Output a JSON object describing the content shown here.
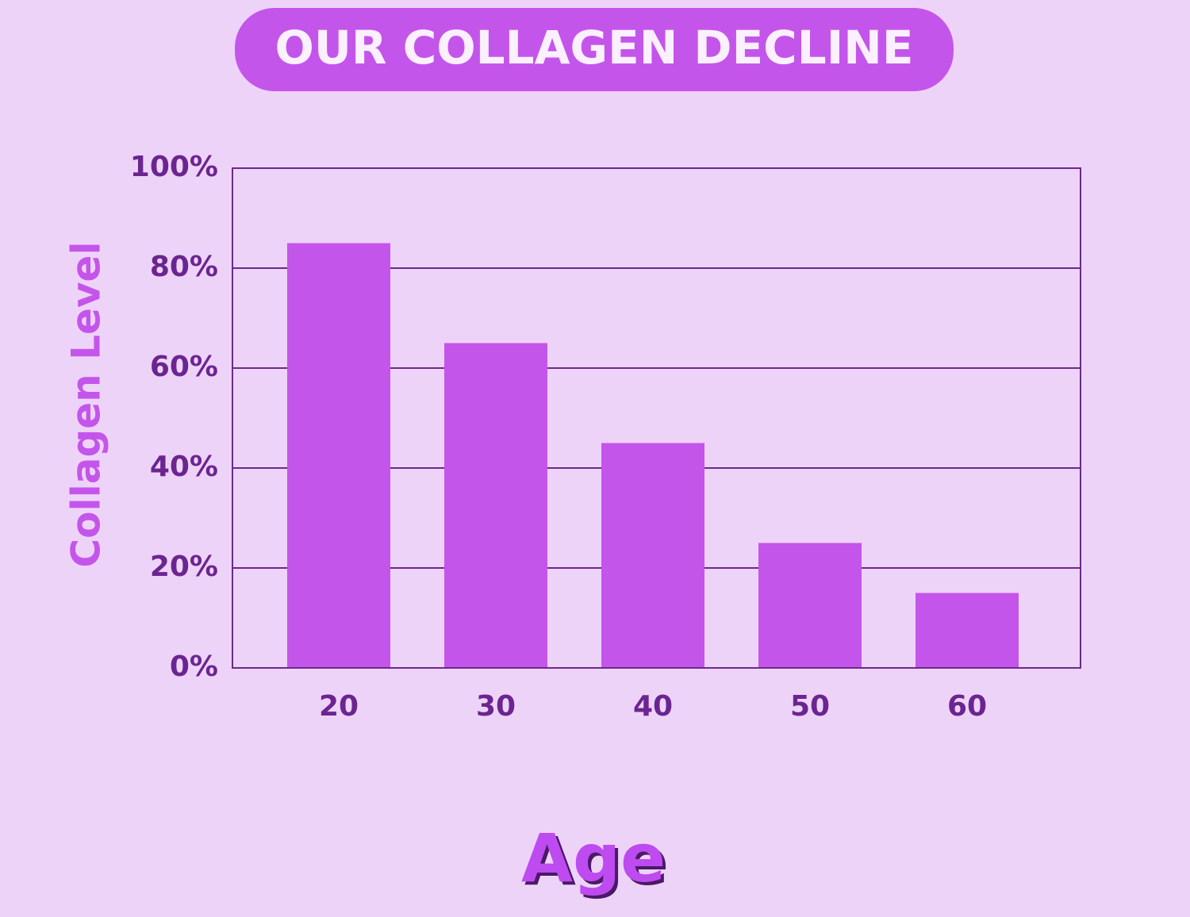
{
  "chart_data": {
    "type": "bar",
    "title": "OUR COLLAGEN DECLINE",
    "x_label": "Age",
    "y_label": "Collagen Level",
    "categories": [
      "20",
      "30",
      "40",
      "50",
      "60"
    ],
    "values": [
      85,
      65,
      45,
      25,
      15
    ],
    "color": "#c455ea",
    "ylim": [
      0,
      100
    ],
    "yticks": [
      {
        "value": 0,
        "label": "0%"
      },
      {
        "value": 20,
        "label": "20%"
      },
      {
        "value": 40,
        "label": "40%"
      },
      {
        "value": 60,
        "label": "60%"
      },
      {
        "value": 80,
        "label": "80%"
      },
      {
        "value": 100,
        "label": "100%"
      }
    ],
    "grid": true
  }
}
